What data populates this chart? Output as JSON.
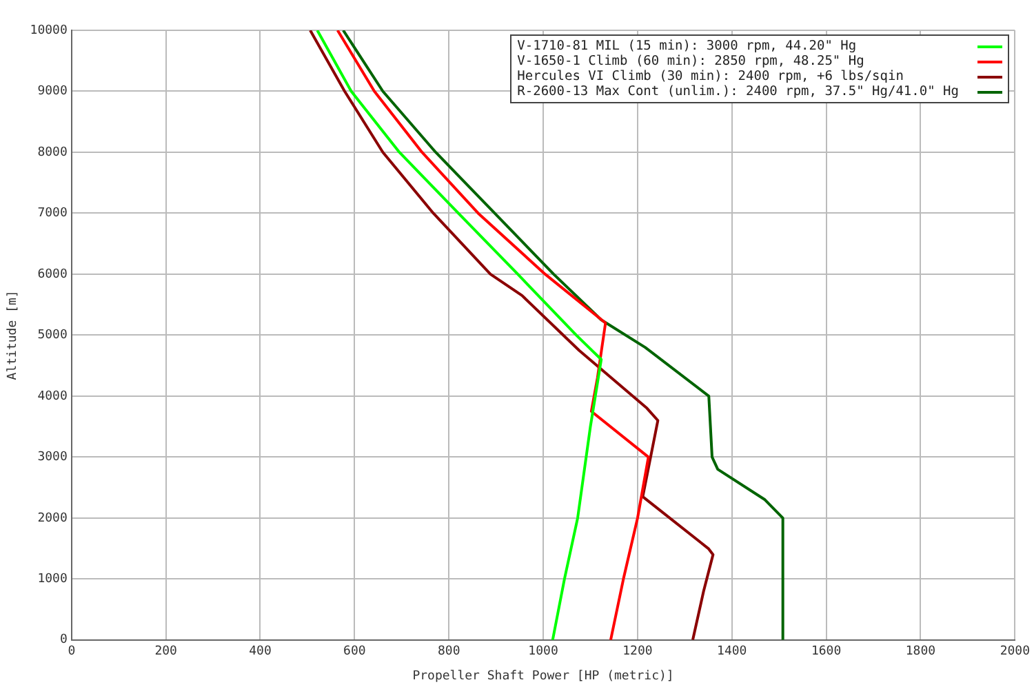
{
  "chart_data": {
    "type": "line",
    "xlabel": "Propeller Shaft Power [HP (metric)]",
    "ylabel": "Altitude [m]",
    "xlim": [
      0,
      2000
    ],
    "xticks": [
      0,
      200,
      400,
      600,
      800,
      1000,
      1200,
      1400,
      1600,
      1800,
      2000
    ],
    "ylim": [
      0,
      10000
    ],
    "yticks": [
      0,
      1000,
      2000,
      3000,
      4000,
      5000,
      6000,
      7000,
      8000,
      9000,
      10000
    ],
    "grid": true,
    "legend": "top right",
    "marker": "none",
    "line_style": "solid",
    "series": [
      {
        "name": "V-1710-81 MIL (15 min): 3000 rpm, 44.20\" Hg",
        "color": "#00ff00",
        "x": [
          1020,
          1045,
          1073,
          1100,
          1123,
          1070,
          946,
          820,
          695,
          593,
          521
        ],
        "values": [
          0,
          1000,
          2000,
          3500,
          4600,
          5000,
          6000,
          7000,
          8000,
          9000,
          10000
        ]
      },
      {
        "name": "V-1650-1 Climb (60 min): 2850 rpm, 48.25\" Hg",
        "color": "#ff0000",
        "x": [
          1143,
          1170,
          1200,
          1223,
          1102,
          1115,
          1132,
          1004,
          862,
          743,
          642,
          564
        ],
        "values": [
          0,
          1000,
          2000,
          3000,
          3750,
          4300,
          5200,
          6000,
          7000,
          8000,
          9000,
          10000
        ]
      },
      {
        "name": "Hercules VI Climb (30 min): 2400 rpm, +6 lbs/sqin",
        "color": "#8b0000",
        "x": [
          1317,
          1340,
          1360,
          1350,
          1211,
          1243,
          1220,
          1076,
          955,
          888,
          767,
          660,
          579,
          506
        ],
        "values": [
          0,
          800,
          1400,
          1500,
          2350,
          3600,
          3800,
          4750,
          5650,
          6000,
          7000,
          8000,
          9000,
          10000
        ]
      },
      {
        "name": "R-2600-13 Max Cont (unlim.): 2400 rpm, 37.5\" Hg/41.0\" Hg",
        "color": "#006400",
        "x": [
          1508,
          1508,
          1470,
          1370,
          1358,
          1351,
          1216,
          1123,
          1022,
          897,
          772,
          660,
          576
        ],
        "values": [
          0,
          2000,
          2300,
          2800,
          3000,
          4000,
          4800,
          5250,
          6000,
          7000,
          8000,
          9000,
          10000
        ]
      }
    ]
  }
}
